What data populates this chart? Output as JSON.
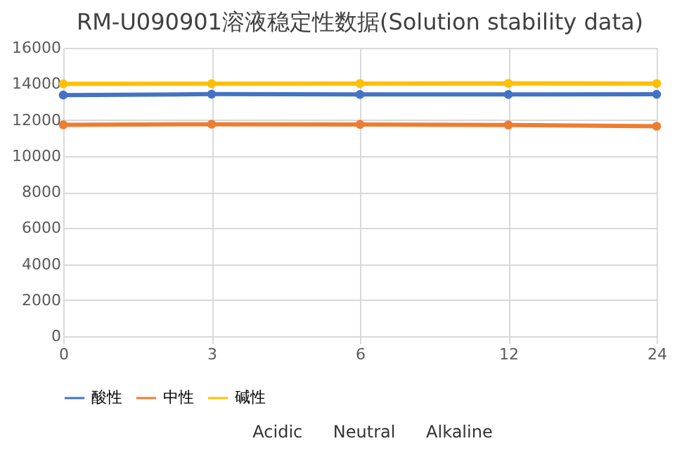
{
  "chart_data": {
    "type": "line",
    "title": "RM-U090901溶液稳定性数据(Solution stability data)",
    "categories": [
      "0",
      "3",
      "6",
      "12",
      "24"
    ],
    "series": [
      {
        "name": "酸性",
        "color": "#4472c4",
        "values": [
          13380,
          13430,
          13410,
          13410,
          13420
        ]
      },
      {
        "name": "中性",
        "color": "#ed7d31",
        "values": [
          11730,
          11760,
          11750,
          11720,
          11650
        ]
      },
      {
        "name": "碱性",
        "color": "#ffc000",
        "values": [
          14000,
          14010,
          14020,
          14030,
          14020
        ]
      }
    ],
    "ylim": [
      0,
      16000
    ],
    "yticks": [
      0,
      2000,
      4000,
      6000,
      8000,
      10000,
      12000,
      14000,
      16000
    ],
    "grid": true,
    "legend": "bottom",
    "marker": "circle",
    "annotations": [
      "Acidic Neutral Alkaline"
    ]
  }
}
